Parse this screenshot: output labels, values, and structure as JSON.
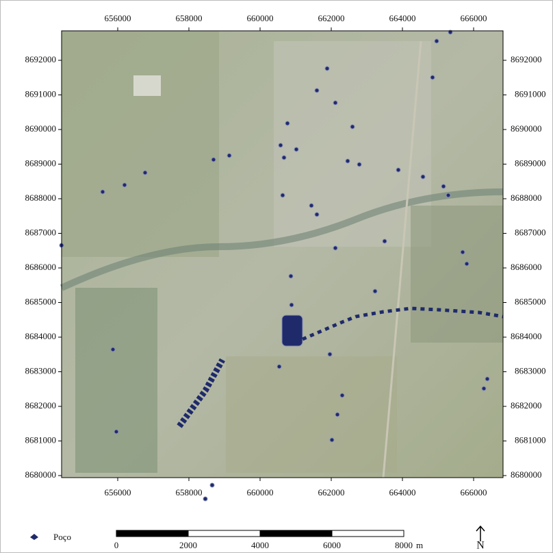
{
  "coordinates": {
    "top": [
      656000,
      658000,
      660000,
      662000,
      664000,
      666000
    ],
    "bottom": [
      656000,
      658000,
      660000,
      662000,
      664000,
      666000
    ],
    "left": [
      8692000,
      8691000,
      8690000,
      8689000,
      8688000,
      8687000,
      8686000,
      8685000,
      8684000,
      8683000,
      8682000,
      8681000,
      8680000
    ],
    "right": [
      8692000,
      8691000,
      8690000,
      8689000,
      8688000,
      8687000,
      8686000,
      8685000,
      8684000,
      8683000,
      8682000,
      8681000,
      8680000
    ]
  },
  "legend": {
    "label": "Poço"
  },
  "scale_bar": {
    "labels": [
      0,
      2000,
      4000,
      6000,
      8000
    ],
    "unit": "m"
  },
  "north_arrow": {
    "label": "N"
  }
}
